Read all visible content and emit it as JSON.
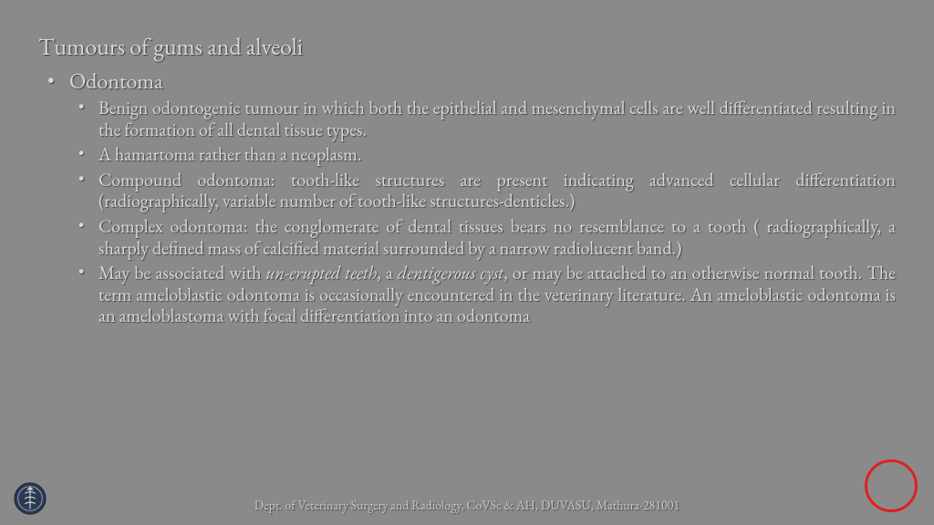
{
  "background_color": "#8a8a8a",
  "text_color": "#d9d9d9",
  "accent_circle_color": "#e02020",
  "title": "Tumours of gums and alveoli",
  "title_fontsize": 26,
  "level1": {
    "label": "Odontoma",
    "fontsize": 24,
    "bullets": [
      {
        "html": "Benign odontogenic tumour in which both the epithelial and mesenchymal cells are well differentiated resulting in the formation of all dental tissue types."
      },
      {
        "html": "A hamartoma rather than a neoplasm."
      },
      {
        "html": "Compound odontoma: tooth-like structures are present indicating advanced cellular differentiation (radiographically, variable number of tooth-like structures-denticles.)"
      },
      {
        "html": "Complex odontoma: the conglomerate of dental tissues bears no resemblance to a tooth ( radiographically, a sharply defined mass of calcified material surrounded by a narrow radiolucent band.)"
      },
      {
        "html": "May be associated with <em>un-erupted teeth</em>, a <em>dentigerous cyst</em>, or may be attached to an otherwise normal tooth. The term ameloblastic odontoma is occasionally encountered in the veterinary literature. An ameloblastic odontoma is an ameloblastoma with focal differentiation into an odontoma"
      }
    ],
    "bullet_fontsize": 20
  },
  "footer": "Dept. of Veterinary Surgery and Radiology, CoVSc & AH, DUVASU, Mathura-281001",
  "footer_fontsize": 14
}
